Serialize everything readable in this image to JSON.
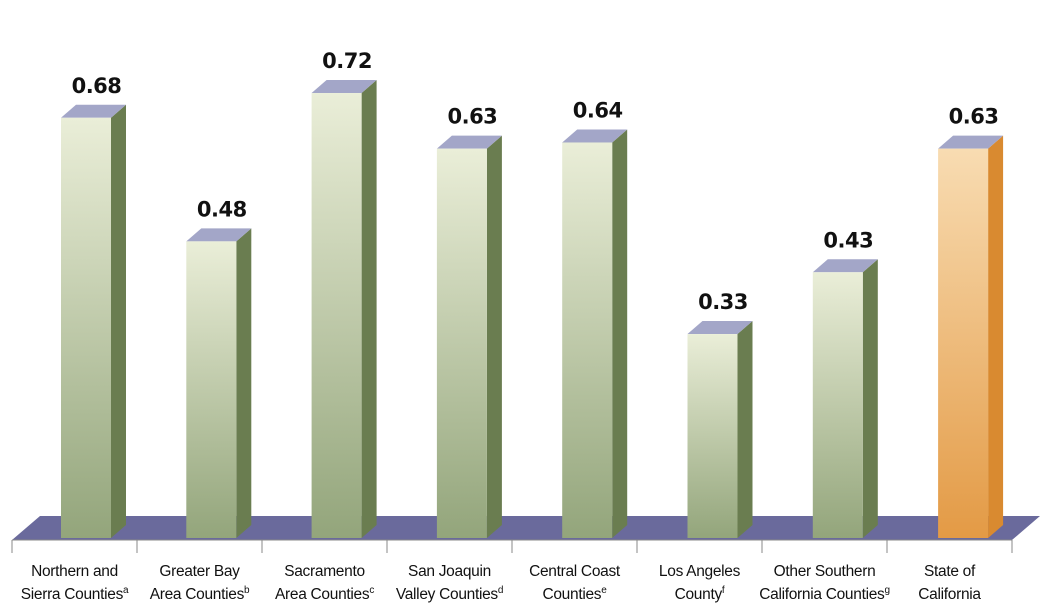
{
  "chart_data": {
    "type": "bar",
    "title": "",
    "xlabel": "",
    "ylabel": "",
    "ylim": [
      0,
      0.8
    ],
    "grid": false,
    "categories": [
      {
        "line1": "Northern and",
        "line2": "Sierra Counties",
        "note": "a"
      },
      {
        "line1": "Greater Bay",
        "line2": "Area Counties",
        "note": "b"
      },
      {
        "line1": "Sacramento",
        "line2": "Area Counties",
        "note": "c"
      },
      {
        "line1": "San Joaquin",
        "line2": "Valley Counties",
        "note": "d"
      },
      {
        "line1": "Central Coast",
        "line2": "Counties",
        "note": "e"
      },
      {
        "line1": "Los Angeles",
        "line2": "County",
        "note": "f"
      },
      {
        "line1": "Other Southern",
        "line2": "California Counties",
        "note": "g"
      },
      {
        "line1": "State of",
        "line2": "California",
        "note": ""
      }
    ],
    "series": [
      {
        "values": [
          0.68,
          0.48,
          0.72,
          0.63,
          0.64,
          0.33,
          0.43,
          0.63
        ],
        "value_labels": [
          "0.68",
          "0.48",
          "0.72",
          "0.63",
          "0.64",
          "0.33",
          "0.43",
          "0.63"
        ]
      }
    ],
    "colors": {
      "bar_front_top": "#eaeed8",
      "bar_front_bottom": "#93a57b",
      "bar_side": "#6a7d50",
      "bar_top": "#a3a6c8",
      "highlight_front_top": "#f8dcb2",
      "highlight_front_bottom": "#e39a45",
      "highlight_side": "#d98a30",
      "floor": "#6a6a9c",
      "axis": "#888888"
    },
    "highlight_index": 7
  }
}
